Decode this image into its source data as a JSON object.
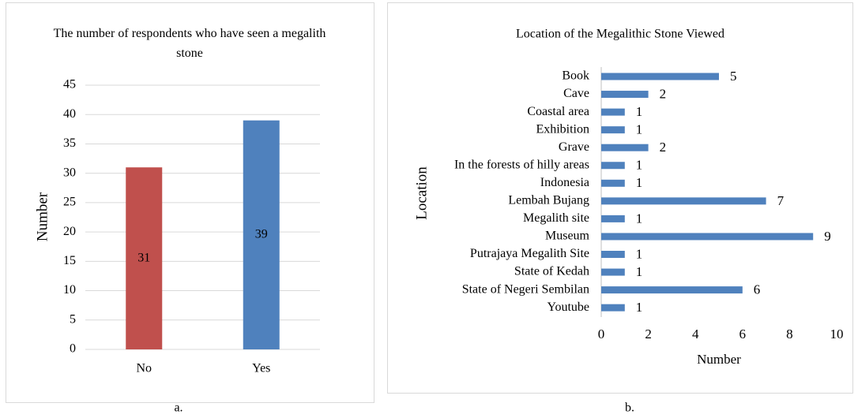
{
  "chart_data": [
    {
      "type": "bar",
      "title": "The number of respondents who have seen a megalith stone",
      "categories": [
        "No",
        "Yes"
      ],
      "values": [
        31,
        39
      ],
      "colors": [
        "#c0504d",
        "#4f81bd"
      ],
      "ylabel": "Number",
      "ylim": [
        0,
        45
      ],
      "yticks": [
        0,
        5,
        10,
        15,
        20,
        25,
        30,
        35,
        40,
        45
      ],
      "grid": true,
      "caption": "a."
    },
    {
      "type": "barh",
      "title": "Location of  the Megalithic Stone Viewed",
      "categories": [
        "Book",
        "Cave",
        "Coastal area",
        "Exhibition",
        "Grave",
        "In the forests of hilly areas",
        "Indonesia",
        "Lembah Bujang",
        "Megalith site",
        "Museum",
        "Putrajaya Megalith Site",
        "State of Kedah",
        "State of Negeri Sembilan",
        "Youtube"
      ],
      "values": [
        5,
        2,
        1,
        1,
        2,
        1,
        1,
        7,
        1,
        9,
        1,
        1,
        6,
        1
      ],
      "color": "#4f81bd",
      "xlabel": "Number",
      "ylabel": "Location",
      "xlim": [
        0,
        10
      ],
      "xticks": [
        0,
        2,
        4,
        6,
        8,
        10
      ],
      "grid": false,
      "caption": "b."
    }
  ]
}
